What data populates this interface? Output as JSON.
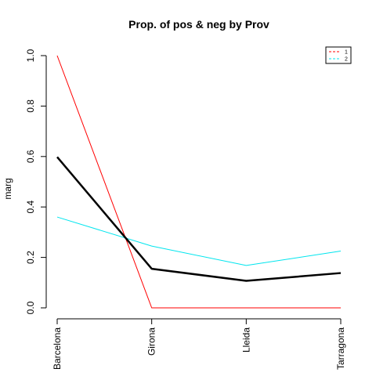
{
  "chart_data": {
    "type": "line",
    "title": "Prop. of pos & neg by Prov",
    "xlabel": "",
    "ylabel": "marg",
    "categories": [
      "Barcelona",
      "Girona",
      "Lleida",
      "Tarragona"
    ],
    "ylim": [
      0,
      1
    ],
    "yticks": [
      "0.0",
      "0.2",
      "0.4",
      "0.6",
      "0.8",
      "1.0"
    ],
    "legend_position": "top-right",
    "grid": false,
    "series": [
      {
        "name": "1",
        "color": "#ff0000",
        "width": "thin",
        "legend": true,
        "values": [
          1.0,
          0.0,
          0.0,
          0.0
        ]
      },
      {
        "name": "2",
        "color": "#00e5ee",
        "width": "thin",
        "legend": true,
        "values": [
          0.36,
          0.245,
          0.168,
          0.225
        ]
      },
      {
        "name": "",
        "color": "#000000",
        "width": "thick",
        "legend": false,
        "values": [
          0.598,
          0.155,
          0.107,
          0.138
        ]
      }
    ]
  }
}
